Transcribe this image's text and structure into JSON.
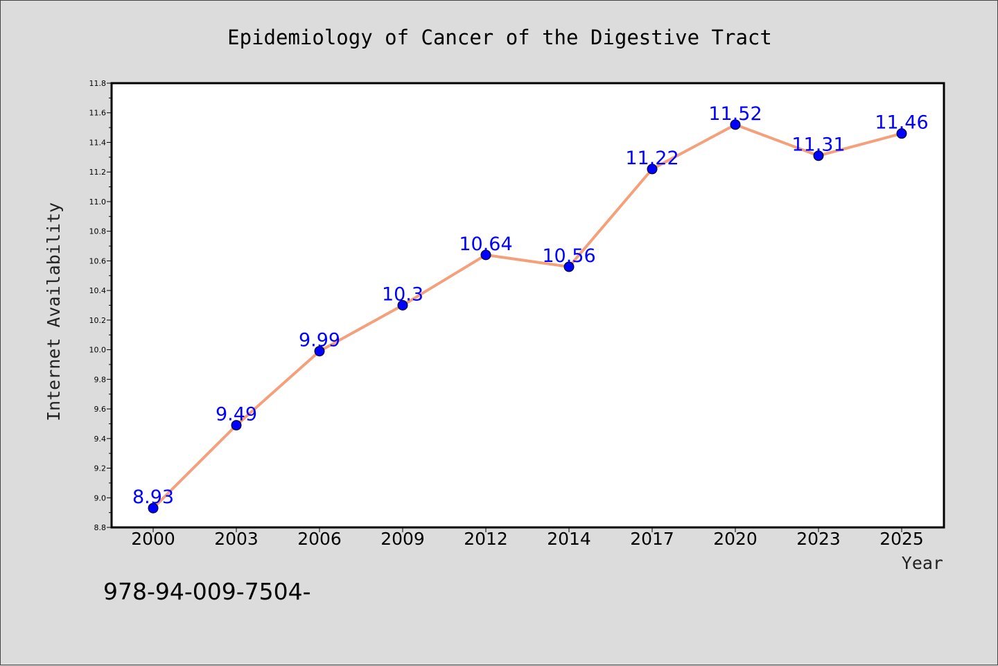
{
  "chart_data": {
    "type": "line",
    "title": "Epidemiology of Cancer of the Digestive Tract",
    "xlabel": "Year",
    "ylabel": "Internet Availability",
    "categories": [
      "2000",
      "2003",
      "2006",
      "2009",
      "2012",
      "2014",
      "2017",
      "2020",
      "2023",
      "2025"
    ],
    "series": [
      {
        "values": [
          8.93,
          9.49,
          9.99,
          10.3,
          10.64,
          10.56,
          11.22,
          11.52,
          11.31,
          11.46
        ]
      }
    ],
    "data_labels": [
      "8.93",
      "9.49",
      "9.99",
      "10.3",
      "10.64",
      "10.56",
      "11.22",
      "11.52",
      "11.31",
      "11.46"
    ],
    "ylim": [
      8.8,
      11.8
    ],
    "yticks": [
      "8.8",
      "9.0",
      "9.2",
      "9.4",
      "9.6",
      "9.8",
      "10.0",
      "10.2",
      "10.4",
      "10.6",
      "10.8",
      "11.0",
      "11.2",
      "11.4",
      "11.6",
      "11.8"
    ],
    "grid": false,
    "colors": {
      "line": "#f4a07a",
      "marker": "#0000ff",
      "label": "#0000ff",
      "background": "#dcdcdc",
      "plot_background": "#ffffff"
    }
  },
  "footnote": "978-94-009-7504-"
}
